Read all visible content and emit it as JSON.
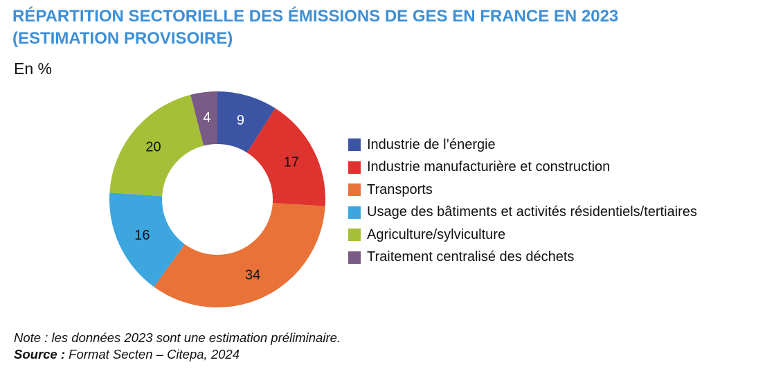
{
  "chart_data": {
    "type": "pie",
    "donut": true,
    "title": "RÉPARTITION SECTORIELLE DES ÉMISSIONS DE GES EN FRANCE EN 2023 (ESTIMATION PROVISOIRE)",
    "unit": "En %",
    "legend_position": "right",
    "slices": [
      {
        "label": "Industrie de l’énergie",
        "value": 9,
        "color": "#3b55a4"
      },
      {
        "label": "Industrie manufacturière et construction",
        "value": 17,
        "color": "#df3330"
      },
      {
        "label": "Transports",
        "value": 34,
        "color": "#e87238"
      },
      {
        "label": "Usage des bâtiments et activités résidentiels/tertiaires",
        "value": 16,
        "color": "#3ea6df"
      },
      {
        "label": "Agriculture/sylviculture",
        "value": 20,
        "color": "#a5c038"
      },
      {
        "label": "Traitement centralisé des déchets",
        "value": 4,
        "color": "#7a5b86"
      }
    ]
  },
  "title_color": "#3d8fd6",
  "note": {
    "text": "Note : les données 2023 sont une estimation préliminaire.",
    "source_label": "Source :",
    "source_text": " Format Secten – Citepa, 2024"
  }
}
